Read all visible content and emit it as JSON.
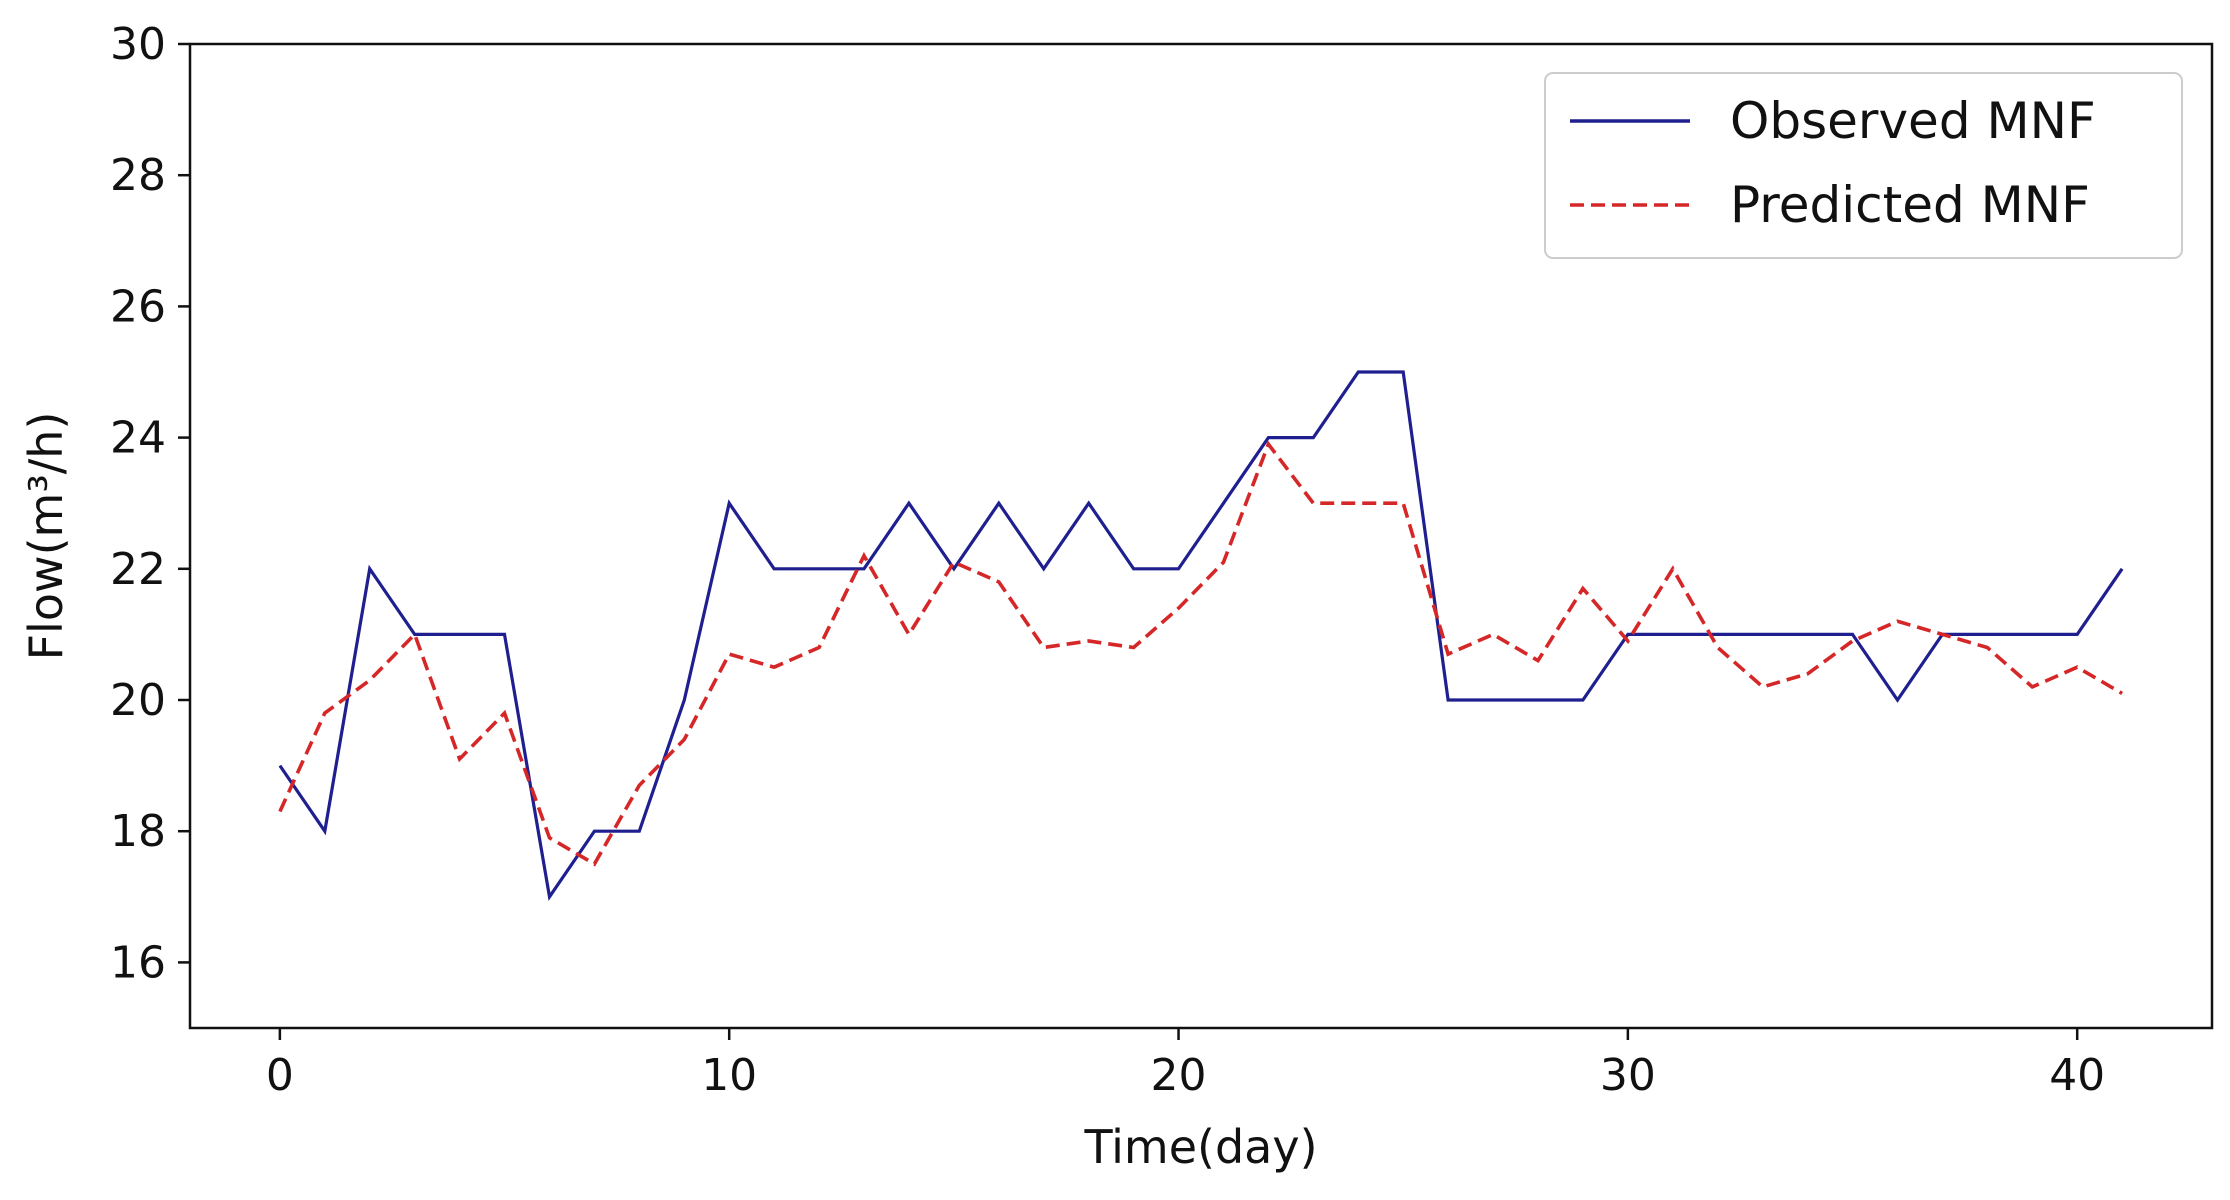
{
  "chart_data": {
    "type": "line",
    "xlabel": "Time(day)",
    "ylabel": "Flow(m³/h)",
    "xlim": [
      -2,
      43
    ],
    "ylim": [
      15,
      30
    ],
    "xticks": [
      0,
      10,
      20,
      30,
      40
    ],
    "yticks": [
      16,
      18,
      20,
      22,
      24,
      26,
      28,
      30
    ],
    "grid": false,
    "legend_position": "top-right",
    "series": [
      {
        "name": "Observed MNF",
        "style": "solid",
        "color": "#1f1f8f",
        "x": [
          0,
          1,
          2,
          3,
          4,
          5,
          6,
          7,
          8,
          9,
          10,
          11,
          12,
          13,
          14,
          15,
          16,
          17,
          18,
          19,
          20,
          21,
          22,
          23,
          24,
          25,
          26,
          27,
          28,
          29,
          30,
          31,
          32,
          33,
          34,
          35,
          36,
          37,
          38,
          39,
          40,
          41
        ],
        "values": [
          19,
          18,
          22,
          21,
          21,
          21,
          17,
          18,
          18,
          20,
          23,
          22,
          22,
          22,
          23,
          22,
          23,
          22,
          23,
          22,
          22,
          23,
          24,
          24,
          25,
          25,
          20,
          20,
          20,
          20,
          21,
          21,
          21,
          21,
          21,
          21,
          20,
          21,
          21,
          21,
          21,
          22
        ]
      },
      {
        "name": "Predicted MNF",
        "style": "dashed",
        "color": "#d62728",
        "x": [
          0,
          1,
          2,
          3,
          4,
          5,
          6,
          7,
          8,
          9,
          10,
          11,
          12,
          13,
          14,
          15,
          16,
          17,
          18,
          19,
          20,
          21,
          22,
          23,
          24,
          25,
          26,
          27,
          28,
          29,
          30,
          31,
          32,
          33,
          34,
          35,
          36,
          37,
          38,
          39,
          40,
          41
        ],
        "values": [
          18.3,
          19.8,
          20.3,
          21.0,
          19.1,
          19.8,
          17.9,
          17.5,
          18.7,
          19.4,
          20.7,
          20.5,
          20.8,
          22.2,
          21.0,
          22.1,
          21.8,
          20.8,
          20.9,
          20.8,
          21.4,
          22.1,
          23.9,
          23.0,
          23.0,
          23.0,
          20.7,
          21.0,
          20.6,
          21.7,
          20.9,
          22.0,
          20.8,
          20.2,
          20.4,
          20.9,
          21.2,
          21.0,
          20.8,
          20.2,
          20.5,
          20.1
        ]
      }
    ]
  }
}
